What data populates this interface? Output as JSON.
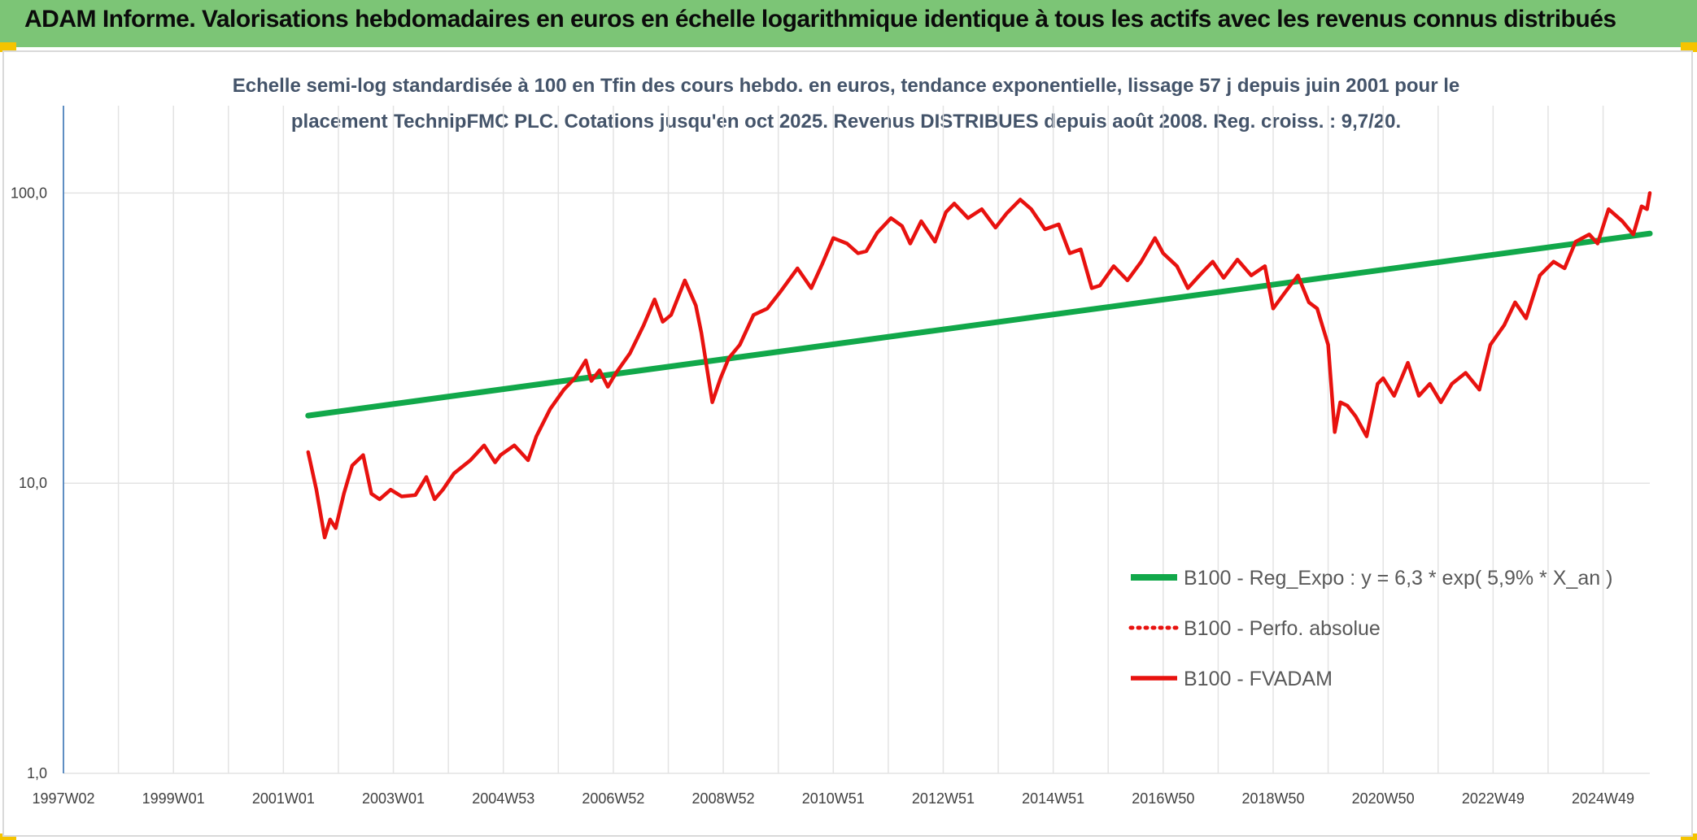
{
  "header": {
    "title": "ADAM Informe. Valorisations hebdomadaires en euros en échelle logarithmique identique à tous les actifs avec les revenus connus distribués"
  },
  "colors": {
    "header_bg": "#7cc576",
    "corner_accent": "#f5c400",
    "trend": "#11a84a",
    "price": "#e8120f",
    "grid": "#e3e3e3",
    "axis": "#2f6db3"
  },
  "chart_data": {
    "type": "line",
    "title_lines": [
      "Echelle semi-log standardisée à 100 en Tfin des cours hebdo. en euros, tendance exponentielle, lissage 57 j depuis juin 2001 pour le",
      "placement TechnipFMC PLC. Cotations jusqu'en oct 2025. Revenus DISTRIBUES depuis août 2008. Reg. croiss. : 9,7/20."
    ],
    "y_scale": "log",
    "ylim": [
      1,
      200
    ],
    "xlim": [
      1997.0,
      2025.85
    ],
    "y_ticks": [
      {
        "value": 1,
        "label": "1,0"
      },
      {
        "value": 10,
        "label": "10,0"
      },
      {
        "value": 100,
        "label": "100,0"
      }
    ],
    "x_ticks": [
      {
        "value": 1997.0,
        "label": "1997W02"
      },
      {
        "value": 1999.0,
        "label": "1999W01"
      },
      {
        "value": 2001.0,
        "label": "2001W01"
      },
      {
        "value": 2003.0,
        "label": "2003W01"
      },
      {
        "value": 2005.0,
        "label": "2004W53"
      },
      {
        "value": 2007.0,
        "label": "2006W52"
      },
      {
        "value": 2009.0,
        "label": "2008W52"
      },
      {
        "value": 2011.0,
        "label": "2010W51"
      },
      {
        "value": 2013.0,
        "label": "2012W51"
      },
      {
        "value": 2015.0,
        "label": "2014W51"
      },
      {
        "value": 2017.0,
        "label": "2016W50"
      },
      {
        "value": 2019.0,
        "label": "2018W50"
      },
      {
        "value": 2021.0,
        "label": "2020W50"
      },
      {
        "value": 2023.0,
        "label": "2022W49"
      },
      {
        "value": 2025.0,
        "label": "2024W49"
      }
    ],
    "grid": "vertical",
    "legend_position": "lower-right",
    "series": [
      {
        "name": "B100 - Reg_Expo : y = 6,3 * exp( 5,9% *  X_an )",
        "style": "solid",
        "x": [
          2001.45,
          2025.85
        ],
        "y": [
          17.1,
          72.5
        ]
      },
      {
        "name": "B100 - Perfo. absolue",
        "style": "dotted",
        "x": [],
        "y": []
      },
      {
        "name": "B100 - FVADAM",
        "style": "solid",
        "x": [
          2001.45,
          2001.6,
          2001.75,
          2001.85,
          2001.95,
          2002.1,
          2002.25,
          2002.45,
          2002.6,
          2002.75,
          2002.95,
          2003.15,
          2003.4,
          2003.6,
          2003.75,
          2003.9,
          2004.1,
          2004.4,
          2004.65,
          2004.85,
          2004.95,
          2005.2,
          2005.45,
          2005.6,
          2005.85,
          2006.1,
          2006.3,
          2006.5,
          2006.6,
          2006.75,
          2006.9,
          2007.05,
          2007.3,
          2007.55,
          2007.75,
          2007.9,
          2008.05,
          2008.3,
          2008.5,
          2008.6,
          2008.8,
          2008.95,
          2009.1,
          2009.3,
          2009.55,
          2009.8,
          2010.05,
          2010.35,
          2010.6,
          2010.8,
          2011.0,
          2011.25,
          2011.45,
          2011.6,
          2011.8,
          2012.05,
          2012.25,
          2012.4,
          2012.6,
          2012.85,
          2013.05,
          2013.2,
          2013.45,
          2013.7,
          2013.95,
          2014.15,
          2014.4,
          2014.6,
          2014.85,
          2015.1,
          2015.3,
          2015.5,
          2015.7,
          2015.85,
          2016.1,
          2016.35,
          2016.6,
          2016.85,
          2017.0,
          2017.25,
          2017.45,
          2017.7,
          2017.9,
          2018.1,
          2018.35,
          2018.6,
          2018.85,
          2019.0,
          2019.2,
          2019.45,
          2019.65,
          2019.8,
          2020.0,
          2020.12,
          2020.22,
          2020.35,
          2020.5,
          2020.7,
          2020.9,
          2021.0,
          2021.2,
          2021.45,
          2021.65,
          2021.85,
          2022.05,
          2022.25,
          2022.5,
          2022.75,
          2022.95,
          2023.2,
          2023.4,
          2023.6,
          2023.85,
          2024.1,
          2024.3,
          2024.5,
          2024.75,
          2024.9,
          2025.1,
          2025.35,
          2025.55,
          2025.7,
          2025.8,
          2025.85
        ],
        "y": [
          12.8,
          9.5,
          6.5,
          7.5,
          7.0,
          9.2,
          11.5,
          12.5,
          9.2,
          8.8,
          9.5,
          9.0,
          9.1,
          10.5,
          8.8,
          9.5,
          10.8,
          12.0,
          13.5,
          11.8,
          12.5,
          13.5,
          12.0,
          14.5,
          18.0,
          21.0,
          23.0,
          26.5,
          22.5,
          24.5,
          21.5,
          24.0,
          28.0,
          35.0,
          43.0,
          36.0,
          38.0,
          50.0,
          41.0,
          33.0,
          19.0,
          23.0,
          27.0,
          30.0,
          38.0,
          40.0,
          46.0,
          55.0,
          47.0,
          57.0,
          70.0,
          67.0,
          62.0,
          63.0,
          73.0,
          82.0,
          77.0,
          67.0,
          80.0,
          68.0,
          86.0,
          92.0,
          82.0,
          88.0,
          76.0,
          85.0,
          95.0,
          88.0,
          75.0,
          78.0,
          62.0,
          64.0,
          47.0,
          48.0,
          56.0,
          50.0,
          58.0,
          70.0,
          62.0,
          56.0,
          47.0,
          53.0,
          58.0,
          51.0,
          59.0,
          52.0,
          56.0,
          40.0,
          45.0,
          52.0,
          42.0,
          40.0,
          30.0,
          15.0,
          19.0,
          18.5,
          17.0,
          14.5,
          22.0,
          23.0,
          20.0,
          26.0,
          20.0,
          22.0,
          19.0,
          22.0,
          24.0,
          21.0,
          30.0,
          35.0,
          42.0,
          37.0,
          52.0,
          58.0,
          55.0,
          68.0,
          72.0,
          67.0,
          88.0,
          80.0,
          72.0,
          90.0,
          88.0,
          100.0
        ]
      }
    ]
  }
}
